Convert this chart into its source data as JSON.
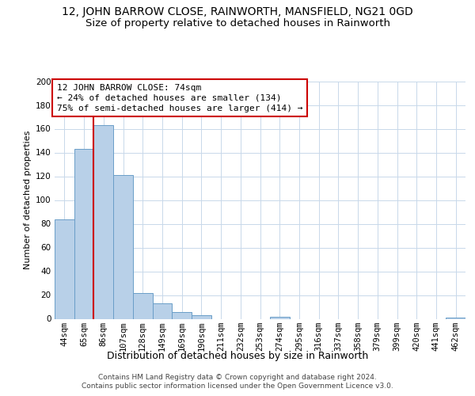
{
  "title": "12, JOHN BARROW CLOSE, RAINWORTH, MANSFIELD, NG21 0GD",
  "subtitle": "Size of property relative to detached houses in Rainworth",
  "xlabel": "Distribution of detached houses by size in Rainworth",
  "ylabel": "Number of detached properties",
  "categories": [
    "44sqm",
    "65sqm",
    "86sqm",
    "107sqm",
    "128sqm",
    "149sqm",
    "169sqm",
    "190sqm",
    "211sqm",
    "232sqm",
    "253sqm",
    "274sqm",
    "295sqm",
    "316sqm",
    "337sqm",
    "358sqm",
    "379sqm",
    "399sqm",
    "420sqm",
    "441sqm",
    "462sqm"
  ],
  "values": [
    84,
    143,
    163,
    121,
    22,
    13,
    6,
    3,
    0,
    0,
    0,
    2,
    0,
    0,
    0,
    0,
    0,
    0,
    0,
    0,
    1
  ],
  "bar_color": "#b8d0e8",
  "bar_edge_color": "#6a9ec8",
  "background_color": "#ffffff",
  "grid_color": "#c8d8ea",
  "vline_color": "#cc0000",
  "vline_pos": 1.5,
  "annotation_text": "12 JOHN BARROW CLOSE: 74sqm\n← 24% of detached houses are smaller (134)\n75% of semi-detached houses are larger (414) →",
  "annotation_box_color": "#ffffff",
  "annotation_box_edge_color": "#cc0000",
  "ylim": [
    0,
    200
  ],
  "yticks": [
    0,
    20,
    40,
    60,
    80,
    100,
    120,
    140,
    160,
    180,
    200
  ],
  "footer": "Contains HM Land Registry data © Crown copyright and database right 2024.\nContains public sector information licensed under the Open Government Licence v3.0.",
  "title_fontsize": 10,
  "subtitle_fontsize": 9.5,
  "ylabel_fontsize": 8,
  "xlabel_fontsize": 9,
  "annotation_fontsize": 8,
  "tick_fontsize": 7.5,
  "footer_fontsize": 6.5
}
